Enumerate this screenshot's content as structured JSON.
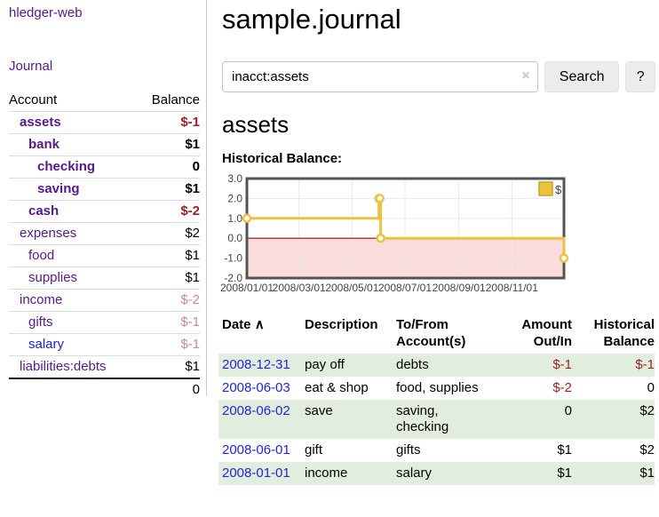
{
  "colors": {
    "link_purple": "#551a8b",
    "link_blue": "#2121e0",
    "date_link_blue": "#2424dd",
    "negative_strong": "#9e2121",
    "negative_light": "#c98c8c",
    "row_stripe_green": "#e2eedd",
    "chart_line_gold": "#edc240"
  },
  "sidebar": {
    "brand": "hledger-web",
    "journal_link": "Journal",
    "table": {
      "account_header": "Account",
      "balance_header": "Balance",
      "total": "0",
      "accounts": [
        {
          "name": "assets",
          "indent": 0,
          "bold": true,
          "link": "purple",
          "balance": "$-1",
          "balance_tone": "neg-strong"
        },
        {
          "name": "bank",
          "indent": 1,
          "bold": true,
          "link": "purple",
          "balance": "$1",
          "balance_tone": ""
        },
        {
          "name": "checking",
          "indent": 2,
          "bold": true,
          "link": "purple",
          "balance": "0",
          "balance_tone": ""
        },
        {
          "name": "saving",
          "indent": 2,
          "bold": true,
          "link": "purple",
          "balance": "$1",
          "balance_tone": ""
        },
        {
          "name": "cash",
          "indent": 1,
          "bold": true,
          "link": "purple",
          "balance": "$-2",
          "balance_tone": "neg-strong"
        },
        {
          "name": "expenses",
          "indent": 0,
          "bold": false,
          "link": "purple",
          "balance": "$2",
          "balance_tone": ""
        },
        {
          "name": "food",
          "indent": 1,
          "bold": false,
          "link": "purple",
          "balance": "$1",
          "balance_tone": ""
        },
        {
          "name": "supplies",
          "indent": 1,
          "bold": false,
          "link": "purple",
          "balance": "$1",
          "balance_tone": ""
        },
        {
          "name": "income",
          "indent": 0,
          "bold": false,
          "link": "purple",
          "balance": "$-2",
          "balance_tone": "neg-light"
        },
        {
          "name": "gifts",
          "indent": 1,
          "bold": false,
          "link": "purple",
          "balance": "$-1",
          "balance_tone": "neg-light"
        },
        {
          "name": "salary",
          "indent": 1,
          "bold": false,
          "link": "blue",
          "balance": "$-1",
          "balance_tone": "neg-light"
        },
        {
          "name": "liabilities:debts",
          "indent": 0,
          "bold": false,
          "link": "purple",
          "balance": "$1",
          "balance_tone": ""
        }
      ]
    }
  },
  "main": {
    "title": "sample.journal",
    "search": {
      "value": "inacct:assets",
      "clear_icon": "×",
      "search_button": "Search",
      "help_button": "?"
    },
    "account_heading": "assets",
    "chart_heading": "Historical Balance:",
    "register": {
      "headers": {
        "date": "Date",
        "sort_arrow": "∧",
        "description": "Description",
        "accounts": "To/From Account(s)",
        "amount": "Amount Out/In",
        "balance": "Historical Balance"
      },
      "rows": [
        {
          "date": "2008-12-31",
          "description": "pay off",
          "accounts": [
            "debts"
          ],
          "amount": "$-1",
          "amount_tone": "neg-strong",
          "balance": "$-1",
          "balance_tone": "neg-strong",
          "shaded": true
        },
        {
          "date": "2008-06-03",
          "description": "eat & shop",
          "accounts": [
            "food",
            "supplies"
          ],
          "amount": "$-2",
          "amount_tone": "neg-strong",
          "balance": "0",
          "balance_tone": "",
          "shaded": false
        },
        {
          "date": "2008-06-02",
          "description": "save",
          "accounts": [
            "saving",
            "checking"
          ],
          "amount": "0",
          "amount_tone": "",
          "balance": "$2",
          "balance_tone": "",
          "shaded": true
        },
        {
          "date": "2008-06-01",
          "description": "gift",
          "accounts": [
            "gifts"
          ],
          "amount": "$1",
          "amount_tone": "",
          "balance": "$2",
          "balance_tone": "",
          "shaded": false
        },
        {
          "date": "2008-01-01",
          "description": "income",
          "accounts": [
            "salary"
          ],
          "amount": "$1",
          "amount_tone": "",
          "balance": "$1",
          "balance_tone": "",
          "shaded": true
        }
      ]
    }
  },
  "chart_data": {
    "type": "line",
    "title": "Historical Balance:",
    "series": [
      {
        "name": "$",
        "color": "#edc240",
        "step": "after",
        "points": [
          [
            "2008-01-01",
            1
          ],
          [
            "2008-06-01",
            2
          ],
          [
            "2008-06-02",
            2
          ],
          [
            "2008-06-03",
            0
          ],
          [
            "2008-12-31",
            -1
          ]
        ]
      }
    ],
    "x_ticks": [
      "2008/01/01",
      "2008/03/01",
      "2008/05/01",
      "2008/07/01",
      "2008/09/01",
      "2008/11/01"
    ],
    "y_ticks": [
      "3.0",
      "2.0",
      "1.0",
      "0.0",
      "-1.0",
      "-2.0"
    ],
    "xlim": [
      "2008-01-01",
      "2008-12-31"
    ],
    "ylim": [
      -2,
      3
    ],
    "grid": true,
    "legend": {
      "label": "$",
      "position": "top-right"
    },
    "negative_region_color": "#fbdcdc",
    "zero_line_color": "#8f0d0d",
    "border_color": "#545454",
    "grid_color": "#e8e8e8",
    "tick_label_color": "#444444",
    "legend_swatch_border": "#c9a227"
  }
}
